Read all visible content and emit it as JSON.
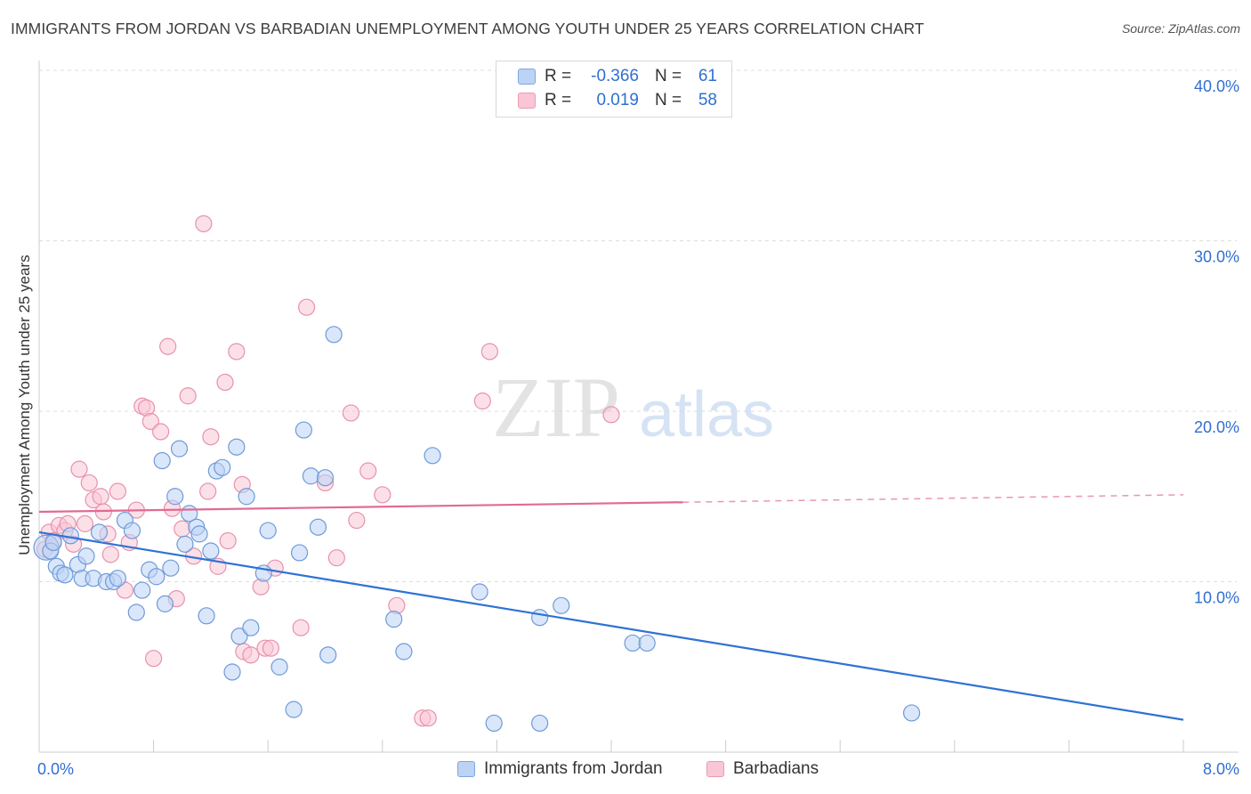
{
  "title": "IMMIGRANTS FROM JORDAN VS BARBADIAN UNEMPLOYMENT AMONG YOUTH UNDER 25 YEARS CORRELATION CHART",
  "source": "Source: ZipAtlas.com",
  "watermark": {
    "zip": "ZIP",
    "atlas": "atlas"
  },
  "stats_legend": {
    "rows": [
      {
        "r_label": "R =",
        "r_value": "-0.366",
        "n_label": "N =",
        "n_value": "61",
        "color": "#bcd3f5"
      },
      {
        "r_label": "R =",
        "r_value": "0.019",
        "n_label": "N =",
        "n_value": "58",
        "color": "#f9c6d6"
      }
    ]
  },
  "colors": {
    "blue_fill": "#bcd3f5",
    "blue_stroke": "#6e9ad8",
    "blue_line": "#2f72d4",
    "pink_fill": "#f9c6d6",
    "pink_stroke": "#e891ad",
    "pink_line": "#e06b93",
    "axis_text": "#2f6fd0",
    "grid": "#dddddd"
  },
  "chart_data": {
    "type": "scatter",
    "title": "IMMIGRANTS FROM JORDAN VS BARBADIAN UNEMPLOYMENT AMONG YOUTH UNDER 25 YEARS CORRELATION CHART",
    "xlabel": "",
    "ylabel": "Unemployment Among Youth under 25 years",
    "xlim": [
      0,
      8
    ],
    "ylim": [
      0,
      40
    ],
    "x_tick_labels": [
      "0.0%",
      "8.0%"
    ],
    "y_tick_labels": [
      "10.0%",
      "20.0%",
      "30.0%",
      "40.0%"
    ],
    "y_ticks": [
      10,
      20,
      30,
      40
    ],
    "grid": true,
    "legend_position": "bottom",
    "series": [
      {
        "name": "Immigrants from Jordan",
        "color": "#bcd3f5",
        "trend": {
          "x": [
            0,
            8
          ],
          "y": [
            12.9,
            1.9
          ],
          "solid_until": 8
        },
        "points": [
          [
            0.05,
            12.0
          ],
          [
            0.08,
            11.8
          ],
          [
            0.1,
            12.3
          ],
          [
            0.12,
            10.9
          ],
          [
            0.15,
            10.5
          ],
          [
            0.18,
            10.4
          ],
          [
            0.22,
            12.7
          ],
          [
            0.27,
            11.0
          ],
          [
            0.3,
            10.2
          ],
          [
            0.33,
            11.5
          ],
          [
            0.38,
            10.2
          ],
          [
            0.42,
            12.9
          ],
          [
            0.47,
            10.0
          ],
          [
            0.52,
            10.0
          ],
          [
            0.55,
            10.2
          ],
          [
            0.6,
            13.6
          ],
          [
            0.65,
            13.0
          ],
          [
            0.68,
            8.2
          ],
          [
            0.72,
            9.5
          ],
          [
            0.77,
            10.7
          ],
          [
            0.82,
            10.3
          ],
          [
            0.86,
            17.1
          ],
          [
            0.88,
            8.7
          ],
          [
            0.92,
            10.8
          ],
          [
            0.95,
            15.0
          ],
          [
            0.98,
            17.8
          ],
          [
            1.02,
            12.2
          ],
          [
            1.05,
            14.0
          ],
          [
            1.1,
            13.2
          ],
          [
            1.12,
            12.8
          ],
          [
            1.17,
            8.0
          ],
          [
            1.2,
            11.8
          ],
          [
            1.24,
            16.5
          ],
          [
            1.28,
            16.7
          ],
          [
            1.35,
            4.7
          ],
          [
            1.38,
            17.9
          ],
          [
            1.4,
            6.8
          ],
          [
            1.45,
            15.0
          ],
          [
            1.48,
            7.3
          ],
          [
            1.57,
            10.5
          ],
          [
            1.6,
            13.0
          ],
          [
            1.68,
            5.0
          ],
          [
            1.78,
            2.5
          ],
          [
            1.82,
            11.7
          ],
          [
            1.85,
            18.9
          ],
          [
            1.9,
            16.2
          ],
          [
            1.95,
            13.2
          ],
          [
            2.0,
            16.1
          ],
          [
            2.02,
            5.7
          ],
          [
            2.06,
            24.5
          ],
          [
            2.48,
            7.8
          ],
          [
            2.55,
            5.9
          ],
          [
            2.75,
            17.4
          ],
          [
            3.08,
            9.4
          ],
          [
            3.18,
            1.7
          ],
          [
            3.5,
            1.7
          ],
          [
            3.5,
            7.9
          ],
          [
            3.65,
            8.6
          ],
          [
            4.15,
            6.4
          ],
          [
            4.25,
            6.4
          ],
          [
            6.1,
            2.3
          ]
        ],
        "sizes": [
          28,
          0,
          0,
          0,
          0,
          0,
          0,
          0,
          0,
          0,
          0,
          0,
          0,
          0,
          0,
          0,
          0,
          0,
          0,
          0,
          0,
          0,
          0,
          0,
          0,
          0,
          0,
          0,
          0,
          0,
          0,
          0,
          0,
          0,
          0,
          0,
          0,
          0,
          0,
          0,
          0,
          0,
          0,
          0,
          0,
          0,
          0,
          0,
          0,
          0,
          0,
          0,
          0,
          0,
          0,
          0,
          0,
          0,
          0,
          0,
          0
        ]
      },
      {
        "name": "Barbadians",
        "color": "#f9c6d6",
        "trend": {
          "x": [
            0,
            8
          ],
          "y": [
            14.1,
            15.1
          ],
          "solid_until": 4.5
        },
        "points": [
          [
            0.04,
            11.9
          ],
          [
            0.07,
            12.9
          ],
          [
            0.1,
            12.4
          ],
          [
            0.14,
            13.3
          ],
          [
            0.18,
            13.0
          ],
          [
            0.2,
            13.4
          ],
          [
            0.24,
            12.2
          ],
          [
            0.28,
            16.6
          ],
          [
            0.32,
            13.4
          ],
          [
            0.35,
            15.8
          ],
          [
            0.38,
            14.8
          ],
          [
            0.43,
            15.0
          ],
          [
            0.45,
            14.1
          ],
          [
            0.48,
            12.8
          ],
          [
            0.5,
            11.6
          ],
          [
            0.55,
            15.3
          ],
          [
            0.6,
            9.5
          ],
          [
            0.63,
            12.3
          ],
          [
            0.68,
            14.2
          ],
          [
            0.72,
            20.3
          ],
          [
            0.75,
            20.2
          ],
          [
            0.78,
            19.4
          ],
          [
            0.8,
            5.5
          ],
          [
            0.85,
            18.8
          ],
          [
            0.9,
            23.8
          ],
          [
            0.93,
            14.3
          ],
          [
            0.96,
            9.0
          ],
          [
            1.0,
            13.1
          ],
          [
            1.04,
            20.9
          ],
          [
            1.08,
            11.5
          ],
          [
            1.15,
            31.0
          ],
          [
            1.18,
            15.3
          ],
          [
            1.2,
            18.5
          ],
          [
            1.25,
            10.9
          ],
          [
            1.3,
            21.7
          ],
          [
            1.32,
            12.4
          ],
          [
            1.38,
            23.5
          ],
          [
            1.42,
            15.7
          ],
          [
            1.43,
            5.9
          ],
          [
            1.48,
            5.7
          ],
          [
            1.55,
            9.7
          ],
          [
            1.58,
            6.1
          ],
          [
            1.62,
            6.1
          ],
          [
            1.65,
            10.8
          ],
          [
            1.83,
            7.3
          ],
          [
            1.87,
            26.1
          ],
          [
            2.0,
            15.8
          ],
          [
            2.08,
            11.4
          ],
          [
            2.18,
            19.9
          ],
          [
            2.22,
            13.6
          ],
          [
            2.3,
            16.5
          ],
          [
            2.4,
            15.1
          ],
          [
            2.5,
            8.6
          ],
          [
            2.68,
            2.0
          ],
          [
            2.72,
            2.0
          ],
          [
            3.1,
            20.6
          ],
          [
            3.15,
            23.5
          ],
          [
            4.0,
            19.8
          ]
        ]
      }
    ]
  },
  "bottom_legend": {
    "items": [
      {
        "label": "Immigrants from Jordan",
        "color": "#bcd3f5"
      },
      {
        "label": "Barbadians",
        "color": "#f9c6d6"
      }
    ]
  }
}
